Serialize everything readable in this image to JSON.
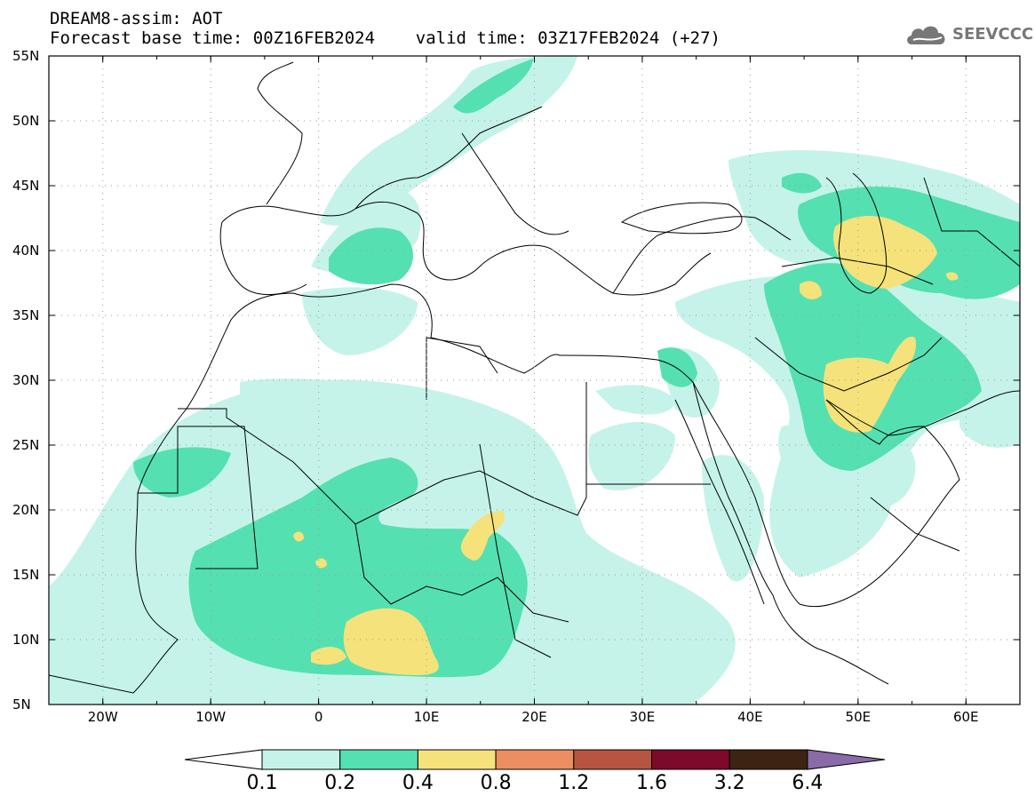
{
  "header": {
    "title_line1": "DREAM8-assim: AOT",
    "title_line2": "Forecast base time: 00Z16FEB2024    valid time: 03Z17FEB2024 (+27)"
  },
  "logo": {
    "text": "SEEVCCC",
    "icon": "cloud-icon"
  },
  "map": {
    "projection": "lat-lon",
    "lon_range": [
      -25,
      65
    ],
    "lat_range": [
      5,
      55
    ],
    "grid": "dotted",
    "lat_labels": [
      "55N",
      "50N",
      "45N",
      "40N",
      "35N",
      "30N",
      "25N",
      "20N",
      "15N",
      "10N",
      "5N"
    ],
    "lon_labels": [
      "20W",
      "10W",
      "0",
      "10E",
      "20E",
      "30E",
      "40E",
      "50E",
      "60E"
    ]
  },
  "colorbar": {
    "boundaries": [
      "0.1",
      "0.2",
      "0.4",
      "0.8",
      "1.2",
      "1.6",
      "3.2",
      "6.4"
    ],
    "colors": {
      "under": "#ffffff",
      "c1": "#c5f3ea",
      "c2": "#55e0b1",
      "c3": "#f5e27a",
      "c4": "#ec8e62",
      "c5": "#b55542",
      "c6": "#7d0a2a",
      "c7": "#3b2412",
      "over": "#8a6aa8"
    }
  }
}
